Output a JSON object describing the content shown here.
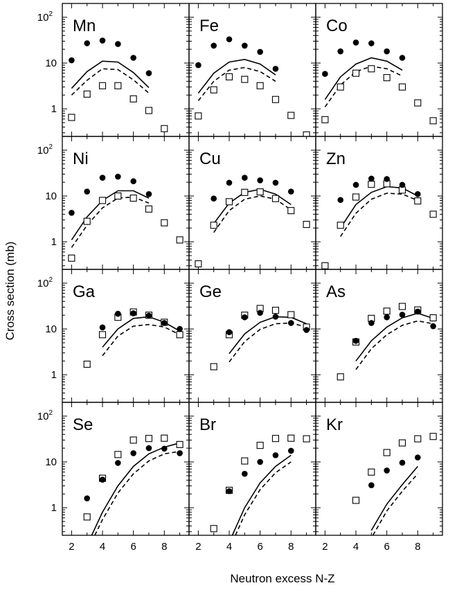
{
  "figure": {
    "ylabel": "Cross section (mb)",
    "xlabel": "Neutron excess N-Z"
  },
  "chart_data": {
    "type": "scatter",
    "layout": "4x3 small multiples, shared axes",
    "xlim": [
      1.4,
      9.6
    ],
    "ylim": [
      0.25,
      200
    ],
    "yscale": "log",
    "x_ticks": [
      2,
      4,
      6,
      8
    ],
    "y_ticks": [
      {
        "value": 1,
        "label": "1"
      },
      {
        "value": 10,
        "label": "10"
      },
      {
        "value": 100,
        "label": "10",
        "sup": "2"
      }
    ],
    "series_styles": {
      "filled": "filled circle",
      "open": "open square",
      "solid": "solid line",
      "dashed": "dashed line"
    },
    "panels": [
      {
        "label": "Mn",
        "filled": [
          [
            2,
            11.5
          ],
          [
            3,
            27
          ],
          [
            4,
            31
          ],
          [
            5,
            26
          ],
          [
            6,
            13
          ],
          [
            7,
            6
          ]
        ],
        "open": [
          [
            2,
            0.65
          ],
          [
            3,
            2.1
          ],
          [
            4,
            3.2
          ],
          [
            5,
            3.2
          ],
          [
            6,
            1.65
          ],
          [
            7,
            0.92
          ],
          [
            8,
            0.37
          ]
        ],
        "solid": [
          [
            2,
            2.8
          ],
          [
            3,
            6.5
          ],
          [
            4,
            11
          ],
          [
            5,
            10.5
          ],
          [
            6,
            6.2
          ],
          [
            7,
            2.9
          ]
        ],
        "dashed": [
          [
            2,
            2.0
          ],
          [
            3,
            4.2
          ],
          [
            4,
            7.5
          ],
          [
            5,
            7.2
          ],
          [
            6,
            4.3
          ],
          [
            7,
            2.2
          ]
        ]
      },
      {
        "label": "Fe",
        "filled": [
          [
            2,
            9
          ],
          [
            3,
            24
          ],
          [
            4,
            33
          ],
          [
            5,
            24
          ],
          [
            6,
            17.5
          ],
          [
            7,
            7.5
          ]
        ],
        "open": [
          [
            2,
            0.7
          ],
          [
            3,
            2.6
          ],
          [
            4,
            5
          ],
          [
            5,
            4.4
          ],
          [
            6,
            3.2
          ],
          [
            7,
            1.6
          ],
          [
            8,
            0.72
          ],
          [
            9,
            0.27
          ]
        ],
        "solid": [
          [
            2,
            2.2
          ],
          [
            3,
            6
          ],
          [
            4,
            10.5
          ],
          [
            5,
            12
          ],
          [
            6,
            9.5
          ],
          [
            7,
            5.5
          ]
        ],
        "dashed": [
          [
            2,
            1.5
          ],
          [
            3,
            4
          ],
          [
            4,
            7
          ],
          [
            5,
            8
          ],
          [
            6,
            6.5
          ],
          [
            7,
            4
          ]
        ]
      },
      {
        "label": "Co",
        "filled": [
          [
            2,
            5.8
          ],
          [
            3,
            18
          ],
          [
            4,
            28
          ],
          [
            5,
            27
          ],
          [
            6,
            18
          ],
          [
            7,
            13
          ]
        ],
        "open": [
          [
            2,
            0.58
          ],
          [
            3,
            3
          ],
          [
            4,
            6
          ],
          [
            5,
            7.5
          ],
          [
            6,
            4.8
          ],
          [
            7,
            3
          ],
          [
            8,
            1.35
          ],
          [
            9,
            0.55
          ]
        ],
        "solid": [
          [
            2,
            1.6
          ],
          [
            3,
            5
          ],
          [
            4,
            9.5
          ],
          [
            5,
            13
          ],
          [
            6,
            11
          ],
          [
            7,
            7
          ]
        ],
        "dashed": [
          [
            2,
            1.1
          ],
          [
            3,
            3.3
          ],
          [
            4,
            6.5
          ],
          [
            5,
            8.5
          ],
          [
            6,
            7.5
          ],
          [
            7,
            5.2
          ]
        ]
      },
      {
        "label": "Ni",
        "filled": [
          [
            2,
            4.3
          ],
          [
            3,
            12.5
          ],
          [
            4,
            25
          ],
          [
            5,
            26.5
          ],
          [
            6,
            21
          ],
          [
            7,
            11
          ]
        ],
        "open": [
          [
            2,
            0.44
          ],
          [
            3,
            2.8
          ],
          [
            4,
            8
          ],
          [
            5,
            10
          ],
          [
            6,
            9
          ],
          [
            7,
            5.2
          ],
          [
            8,
            2.6
          ],
          [
            9,
            1.1
          ]
        ],
        "solid": [
          [
            2,
            1.1
          ],
          [
            3,
            3.5
          ],
          [
            4,
            8
          ],
          [
            5,
            13
          ],
          [
            6,
            13
          ],
          [
            7,
            9
          ]
        ],
        "dashed": [
          [
            2,
            0.75
          ],
          [
            3,
            2.3
          ],
          [
            4,
            5.5
          ],
          [
            5,
            9
          ],
          [
            6,
            9.5
          ],
          [
            7,
            7
          ]
        ]
      },
      {
        "label": "Cu",
        "filled": [
          [
            3,
            8.8
          ],
          [
            4,
            19.5
          ],
          [
            5,
            25
          ],
          [
            6,
            22
          ],
          [
            7,
            19.5
          ],
          [
            8,
            12.5
          ]
        ],
        "open": [
          [
            2,
            0.33
          ],
          [
            3,
            2.3
          ],
          [
            4,
            7.5
          ],
          [
            5,
            12
          ],
          [
            6,
            12.3
          ],
          [
            7,
            8.8
          ],
          [
            8,
            4.8
          ],
          [
            9,
            2.4
          ]
        ],
        "solid": [
          [
            3,
            2.5
          ],
          [
            4,
            7
          ],
          [
            5,
            12
          ],
          [
            6,
            14
          ],
          [
            7,
            11
          ],
          [
            8,
            6.5
          ]
        ],
        "dashed": [
          [
            3,
            1.6
          ],
          [
            4,
            4.8
          ],
          [
            5,
            8.5
          ],
          [
            6,
            10
          ],
          [
            7,
            8.5
          ],
          [
            8,
            5
          ]
        ]
      },
      {
        "label": "Zn",
        "filled": [
          [
            3,
            8.2
          ],
          [
            4,
            17.5
          ],
          [
            5,
            24
          ],
          [
            6,
            23.5
          ],
          [
            7,
            17.5
          ],
          [
            8,
            11
          ]
        ],
        "open": [
          [
            2,
            0.3
          ],
          [
            3,
            2.3
          ],
          [
            4,
            9.5
          ],
          [
            5,
            18
          ],
          [
            6,
            18.5
          ],
          [
            7,
            13.5
          ],
          [
            8,
            7.8
          ],
          [
            9,
            4
          ]
        ],
        "solid": [
          [
            3,
            2
          ],
          [
            4,
            6.5
          ],
          [
            5,
            12
          ],
          [
            6,
            16
          ],
          [
            7,
            15
          ],
          [
            8,
            10
          ]
        ],
        "dashed": [
          [
            3,
            1.3
          ],
          [
            4,
            4.2
          ],
          [
            5,
            8.5
          ],
          [
            6,
            11.5
          ],
          [
            7,
            11
          ],
          [
            8,
            8
          ]
        ]
      },
      {
        "label": "Ga",
        "filled": [
          [
            4,
            10.8
          ],
          [
            5,
            21.5
          ],
          [
            6,
            22
          ],
          [
            7,
            19.5
          ],
          [
            8,
            13.5
          ],
          [
            9,
            10
          ]
        ],
        "open": [
          [
            3,
            1.7
          ],
          [
            4,
            7.5
          ],
          [
            5,
            18
          ],
          [
            6,
            23.5
          ],
          [
            7,
            20
          ],
          [
            8,
            14
          ],
          [
            9,
            7.5
          ]
        ],
        "solid": [
          [
            4,
            4
          ],
          [
            5,
            10
          ],
          [
            6,
            17
          ],
          [
            7,
            18.5
          ],
          [
            8,
            14
          ],
          [
            9,
            9
          ]
        ],
        "dashed": [
          [
            4,
            2.6
          ],
          [
            5,
            7
          ],
          [
            6,
            11.5
          ],
          [
            7,
            12.5
          ],
          [
            8,
            11
          ],
          [
            9,
            7.5
          ]
        ]
      },
      {
        "label": "Ge",
        "filled": [
          [
            4,
            8.5
          ],
          [
            5,
            18
          ],
          [
            6,
            22.5
          ],
          [
            7,
            18.5
          ],
          [
            8,
            13.5
          ],
          [
            9,
            9.5
          ]
        ],
        "open": [
          [
            3,
            1.5
          ],
          [
            4,
            7.5
          ],
          [
            5,
            20
          ],
          [
            6,
            28
          ],
          [
            7,
            25.5
          ],
          [
            8,
            20.5
          ],
          [
            9,
            11
          ]
        ],
        "solid": [
          [
            4,
            2.9
          ],
          [
            5,
            7.8
          ],
          [
            6,
            14
          ],
          [
            7,
            18.5
          ],
          [
            8,
            18
          ],
          [
            9,
            13
          ]
        ],
        "dashed": [
          [
            4,
            1.9
          ],
          [
            5,
            5.3
          ],
          [
            6,
            9.8
          ],
          [
            7,
            13
          ],
          [
            8,
            13.5
          ],
          [
            9,
            11
          ]
        ]
      },
      {
        "label": "As",
        "filled": [
          [
            4,
            5.5
          ],
          [
            5,
            13.5
          ],
          [
            6,
            18
          ],
          [
            7,
            20.5
          ],
          [
            8,
            24
          ],
          [
            9,
            11.5
          ]
        ],
        "open": [
          [
            3,
            0.9
          ],
          [
            4,
            5.2
          ],
          [
            5,
            17
          ],
          [
            6,
            24.5
          ],
          [
            7,
            31
          ],
          [
            8,
            26
          ],
          [
            9,
            17.5
          ]
        ],
        "solid": [
          [
            4,
            2
          ],
          [
            5,
            5.5
          ],
          [
            6,
            11
          ],
          [
            7,
            17.5
          ],
          [
            8,
            22
          ],
          [
            9,
            17
          ]
        ],
        "dashed": [
          [
            4,
            1.3
          ],
          [
            5,
            3.7
          ],
          [
            6,
            7.5
          ],
          [
            7,
            12
          ],
          [
            8,
            15
          ],
          [
            9,
            13
          ]
        ]
      },
      {
        "label": "Se",
        "filled": [
          [
            3,
            1.6
          ],
          [
            4,
            4.1
          ],
          [
            5,
            9.5
          ],
          [
            6,
            15.5
          ],
          [
            7,
            20
          ],
          [
            8,
            19.5
          ],
          [
            9,
            15.5
          ]
        ],
        "open": [
          [
            3,
            0.63
          ],
          [
            4,
            4.4
          ],
          [
            5,
            14.5
          ],
          [
            6,
            30
          ],
          [
            7,
            32.5
          ],
          [
            8,
            33
          ],
          [
            9,
            24
          ]
        ],
        "solid": [
          [
            3.3,
            0.25
          ],
          [
            4,
            0.8
          ],
          [
            5,
            3
          ],
          [
            6,
            8
          ],
          [
            7,
            15
          ],
          [
            8,
            21
          ],
          [
            9,
            26
          ]
        ],
        "dashed": [
          [
            3.5,
            0.25
          ],
          [
            4,
            0.55
          ],
          [
            5,
            2.1
          ],
          [
            6,
            5.5
          ],
          [
            7,
            10.5
          ],
          [
            8,
            15
          ],
          [
            9,
            17
          ]
        ]
      },
      {
        "label": "Br",
        "filled": [
          [
            4,
            2.3
          ],
          [
            5,
            5.5
          ],
          [
            6,
            10
          ],
          [
            7,
            14
          ],
          [
            8,
            17.5
          ]
        ],
        "open": [
          [
            3,
            0.35
          ],
          [
            4,
            2.4
          ],
          [
            5,
            10.5
          ],
          [
            6,
            23
          ],
          [
            7,
            32.5
          ],
          [
            8,
            33
          ],
          [
            9,
            32
          ]
        ],
        "solid": [
          [
            4.2,
            0.25
          ],
          [
            5,
            1
          ],
          [
            6,
            3.5
          ],
          [
            7,
            8
          ],
          [
            8,
            14
          ]
        ],
        "dashed": [
          [
            4.4,
            0.25
          ],
          [
            5,
            0.7
          ],
          [
            6,
            2.5
          ],
          [
            7,
            5.8
          ],
          [
            8,
            10
          ]
        ]
      },
      {
        "label": "Kr",
        "filled": [
          [
            5,
            3.1
          ],
          [
            6,
            6.5
          ],
          [
            7,
            9.6
          ],
          [
            8,
            12.5
          ]
        ],
        "open": [
          [
            4,
            1.45
          ],
          [
            5,
            6
          ],
          [
            6,
            16
          ],
          [
            7,
            26
          ],
          [
            8,
            32
          ],
          [
            9,
            36
          ]
        ],
        "solid": [
          [
            5,
            0.32
          ],
          [
            6,
            1.2
          ],
          [
            7,
            3.2
          ],
          [
            8,
            8
          ]
        ],
        "dashed": [
          [
            5.1,
            0.25
          ],
          [
            6,
            0.85
          ],
          [
            7,
            2.3
          ],
          [
            8,
            5.5
          ]
        ]
      }
    ]
  }
}
